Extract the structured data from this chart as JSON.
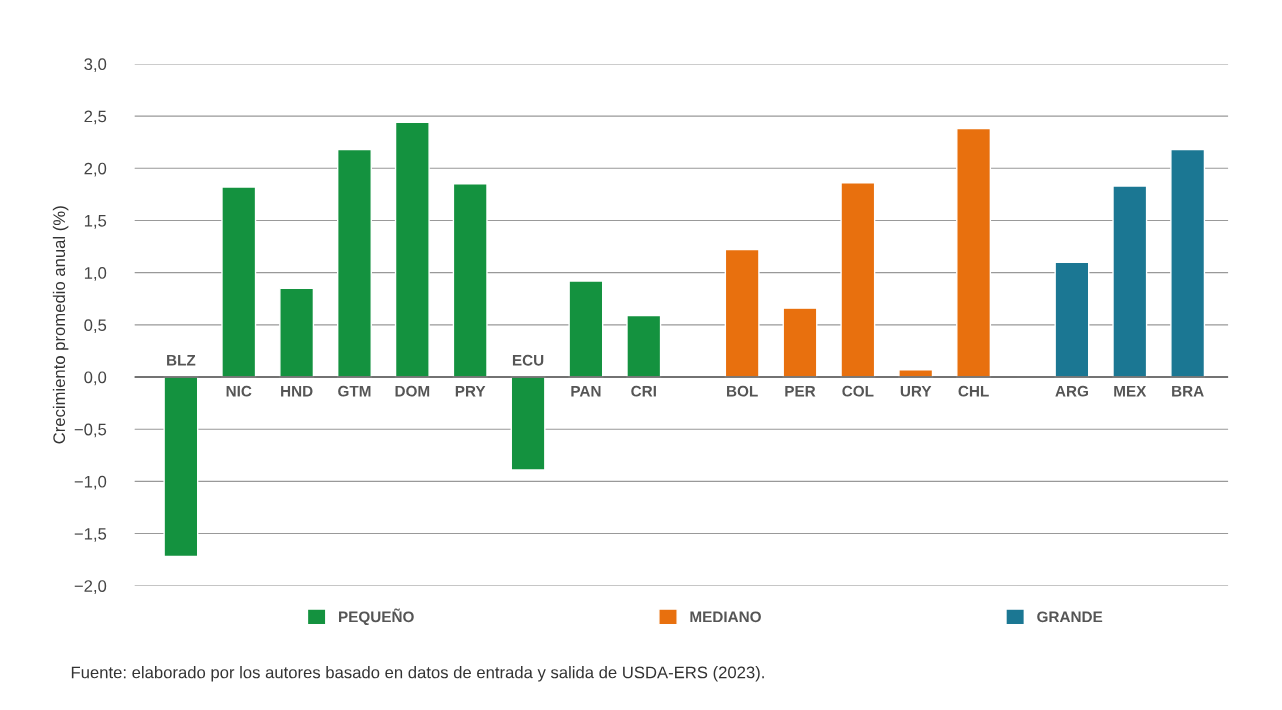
{
  "chart_data": {
    "type": "bar",
    "categories": [
      "BLZ",
      "NIC",
      "HND",
      "GTM",
      "DOM",
      "PRY",
      "ECU",
      "PAN",
      "CRI",
      "BOL",
      "PER",
      "COL",
      "URY",
      "CHL",
      "ARG",
      "MEX",
      "BRA"
    ],
    "series": [
      {
        "name": "PEQUEÑO",
        "color": "#14923f",
        "values": [
          -1.72,
          1.82,
          0.85,
          2.18,
          2.44,
          1.85,
          -0.89,
          0.92,
          0.59,
          null,
          null,
          null,
          null,
          null,
          null,
          null,
          null
        ]
      },
      {
        "name": "MEDIANO",
        "color": "#e8700e",
        "values": [
          null,
          null,
          null,
          null,
          null,
          null,
          null,
          null,
          null,
          1.22,
          0.66,
          1.86,
          0.07,
          2.38,
          null,
          null,
          null
        ]
      },
      {
        "name": "GRANDE",
        "color": "#1b7793",
        "values": [
          null,
          null,
          null,
          null,
          null,
          null,
          null,
          null,
          null,
          null,
          null,
          null,
          null,
          null,
          1.1,
          1.83,
          2.18
        ]
      }
    ],
    "ylabel": "Crecimiento promedio anual (%)",
    "ylim": [
      -2.0,
      3.0
    ],
    "yticks": [
      {
        "value": -2.0,
        "label": "−2,0"
      },
      {
        "value": -1.5,
        "label": "−1,5"
      },
      {
        "value": -1.0,
        "label": "−1,0"
      },
      {
        "value": -0.5,
        "label": "−0,5"
      },
      {
        "value": 0,
        "label": "0,0"
      },
      {
        "value": 0.5,
        "label": "0,5"
      },
      {
        "value": 1.0,
        "label": "1,0"
      },
      {
        "value": 1.5,
        "label": "1,5"
      },
      {
        "value": 2.0,
        "label": "2,0"
      },
      {
        "value": 2.5,
        "label": "2,5"
      },
      {
        "value": 3.0,
        "label": "3,0"
      }
    ],
    "grid": "y",
    "legend": "bottom",
    "annotations": [
      "Fuente: elaborado por los autores basado en datos de entrada y salida de USDA-ERS (2023)."
    ]
  }
}
